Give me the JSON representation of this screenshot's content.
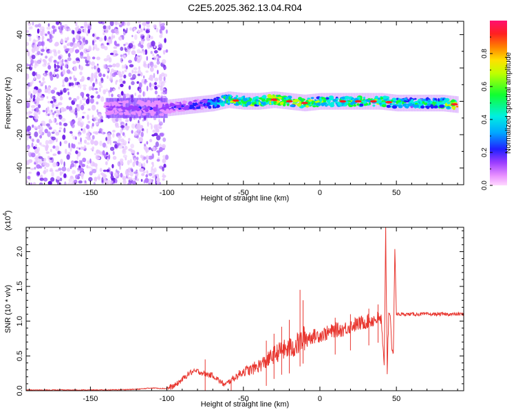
{
  "title": "C2E5.2025.362.13.04.R04",
  "colors": {
    "snr_line": "#e8362f",
    "axis": "#000000",
    "background": "#ffffff"
  },
  "chart_data": [
    {
      "type": "heatmap",
      "name": "spectrogram",
      "xlabel": "Height of straight line (km)",
      "ylabel": "Frequency (Hz)",
      "xlim": [
        -192,
        94
      ],
      "ylim": [
        -50,
        48
      ],
      "x_ticks": [
        -150,
        -100,
        -50,
        0,
        50
      ],
      "y_ticks": [
        -40,
        -20,
        0,
        20,
        40
      ],
      "x_tick_labels": [
        "-150",
        "-100",
        "-50",
        "0",
        "50"
      ],
      "y_tick_labels": [
        "-40",
        "-20",
        "0",
        "20",
        "40"
      ],
      "ridge": {
        "description": "signal band centred near 0 Hz",
        "x": [
          -140,
          -130,
          -120,
          -110,
          -100,
          -90,
          -80,
          -70,
          -60,
          -50,
          -40,
          -30,
          -20,
          -10,
          0,
          10,
          20,
          30,
          40,
          50,
          60,
          70,
          80,
          90
        ],
        "center_hz": [
          -4,
          -4,
          -4,
          -4,
          -4,
          -3,
          -2,
          -1,
          1,
          0,
          0,
          1,
          0,
          -1,
          0,
          0,
          0,
          0,
          0,
          -1,
          -1,
          -1,
          -1,
          -2
        ],
        "amplitude": [
          0.12,
          0.13,
          0.14,
          0.14,
          0.14,
          0.18,
          0.22,
          0.28,
          0.55,
          0.62,
          0.55,
          0.75,
          0.55,
          0.6,
          0.55,
          0.45,
          0.55,
          0.5,
          0.6,
          0.45,
          0.4,
          0.45,
          0.5,
          0.85
        ]
      },
      "noise_region_x": [
        -192,
        -100
      ]
    },
    {
      "type": "colorbar",
      "name": "amplitude-colorbar",
      "label": "Normalized spectral amplitude",
      "range": [
        0,
        1
      ],
      "ticks": [
        0.0,
        0.2,
        0.4,
        0.6,
        0.8
      ],
      "tick_labels": [
        "0.0",
        "0.2",
        "0.4",
        "0.6",
        "0.8"
      ]
    },
    {
      "type": "line",
      "name": "snr",
      "xlabel": "Height of straight line (km)",
      "ylabel": "SNR (10 * v/v)",
      "scale_label": "(x10",
      "scale_exponent": "4",
      "scale_close": ")",
      "xlim": [
        -192,
        94
      ],
      "ylim": [
        0,
        2.35
      ],
      "x_ticks": [
        -150,
        -100,
        -50,
        0,
        50
      ],
      "y_ticks": [
        0.0,
        0.5,
        1.0,
        1.5,
        2.0
      ],
      "x_tick_labels": [
        "-150",
        "-100",
        "-50",
        "0",
        "50"
      ],
      "y_tick_labels": [
        "0.0",
        "0.5",
        "1.0",
        "1.5",
        "2.0"
      ],
      "series": [
        {
          "name": "SNR",
          "x": [
            -192,
            -180,
            -160,
            -140,
            -120,
            -110,
            -100,
            -95,
            -90,
            -85,
            -80,
            -75,
            -70,
            -65,
            -62,
            -60,
            -55,
            -50,
            -45,
            -40,
            -35,
            -30,
            -25,
            -20,
            -15,
            -12,
            -10,
            -5,
            0,
            5,
            10,
            15,
            20,
            25,
            30,
            35,
            38,
            40,
            42,
            43,
            44,
            45,
            46,
            47,
            48,
            49,
            50,
            55,
            60,
            70,
            80,
            90,
            94
          ],
          "values": [
            0.01,
            0.01,
            0.01,
            0.01,
            0.02,
            0.04,
            0.03,
            0.07,
            0.16,
            0.26,
            0.28,
            0.24,
            0.22,
            0.13,
            0.08,
            0.12,
            0.2,
            0.28,
            0.3,
            0.36,
            0.42,
            0.52,
            0.58,
            0.6,
            0.66,
            0.72,
            0.76,
            0.78,
            0.8,
            0.83,
            0.87,
            0.88,
            0.93,
            0.96,
            0.99,
            1.02,
            1.04,
            1.02,
            0.3,
            2.35,
            0.3,
            1.12,
            1.1,
            0.58,
            0.55,
            2.05,
            1.1,
            1.1,
            1.1,
            1.1,
            1.1,
            1.1,
            1.1
          ]
        }
      ],
      "spikes": [
        {
          "x": -75,
          "value": 0.45
        },
        {
          "x": -58,
          "value": 0.15
        },
        {
          "x": -35,
          "value": 0.72
        },
        {
          "x": -30,
          "value": 0.82
        },
        {
          "x": -25,
          "value": 0.92
        },
        {
          "x": -20,
          "value": 1.02
        },
        {
          "x": -13,
          "value": 1.45
        },
        {
          "x": -11,
          "value": 1.3
        },
        {
          "x": 10,
          "value": 1.05
        },
        {
          "x": 20,
          "value": 1.1
        },
        {
          "x": 32,
          "value": 1.18
        },
        {
          "x": 38,
          "value": 1.24
        }
      ]
    }
  ]
}
